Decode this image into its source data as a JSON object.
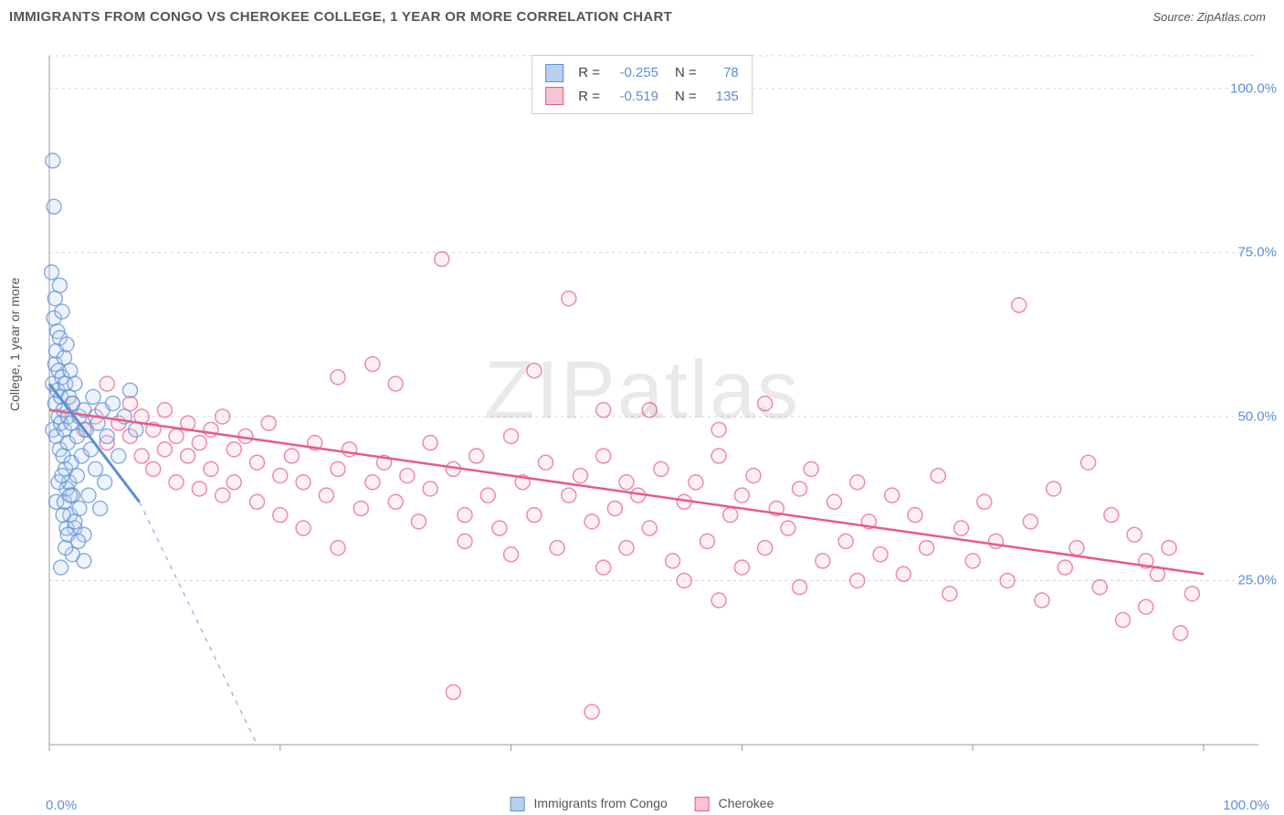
{
  "title": "IMMIGRANTS FROM CONGO VS CHEROKEE COLLEGE, 1 YEAR OR MORE CORRELATION CHART",
  "source_label": "Source: ZipAtlas.com",
  "watermark": "ZIPatlas",
  "chart": {
    "type": "scatter",
    "background_color": "#ffffff",
    "grid_color": "#d5d5d5",
    "axis_color": "#999999",
    "tick_label_color": "#5b8fd6",
    "ylabel": "College, 1 year or more",
    "xlim": [
      0,
      100
    ],
    "ylim": [
      0,
      105
    ],
    "yticks": [
      25.0,
      50.0,
      75.0,
      100.0
    ],
    "ytick_labels": [
      "25.0%",
      "50.0%",
      "75.0%",
      "100.0%"
    ],
    "xtick_left": "0.0%",
    "xtick_right": "100.0%",
    "xminor_ticks": [
      0,
      20,
      40,
      60,
      80,
      100
    ],
    "marker_radius": 8,
    "marker_stroke_width": 1.5,
    "marker_fill_opacity": 0.25,
    "series": [
      {
        "name": "Immigrants from Congo",
        "color": "#5b8fd6",
        "fill": "#b8d0ef",
        "R": "-0.255",
        "N": "78",
        "trend": {
          "x1": 0,
          "y1": 55,
          "x2": 7.8,
          "y2": 37,
          "solid_until_x": 7.8,
          "dash_to_x": 18,
          "dash_to_y": 0
        },
        "points": [
          [
            0.2,
            72
          ],
          [
            0.3,
            55
          ],
          [
            0.3,
            48
          ],
          [
            0.4,
            65
          ],
          [
            0.5,
            58
          ],
          [
            0.5,
            52
          ],
          [
            0.6,
            60
          ],
          [
            0.6,
            47
          ],
          [
            0.7,
            54
          ],
          [
            0.7,
            63
          ],
          [
            0.8,
            50
          ],
          [
            0.8,
            57
          ],
          [
            0.9,
            45
          ],
          [
            0.9,
            62
          ],
          [
            1.0,
            53
          ],
          [
            1.0,
            49
          ],
          [
            1.1,
            66
          ],
          [
            1.1,
            56
          ],
          [
            1.2,
            51
          ],
          [
            1.2,
            44
          ],
          [
            1.3,
            59
          ],
          [
            1.3,
            48
          ],
          [
            1.4,
            55
          ],
          [
            1.4,
            42
          ],
          [
            1.5,
            61
          ],
          [
            1.5,
            39
          ],
          [
            1.6,
            50
          ],
          [
            1.6,
            46
          ],
          [
            1.7,
            53
          ],
          [
            1.7,
            40
          ],
          [
            1.8,
            57
          ],
          [
            1.8,
            35
          ],
          [
            1.9,
            49
          ],
          [
            1.9,
            43
          ],
          [
            2.0,
            52
          ],
          [
            2.0,
            38
          ],
          [
            2.2,
            55
          ],
          [
            2.2,
            33
          ],
          [
            2.4,
            47
          ],
          [
            2.4,
            41
          ],
          [
            2.6,
            50
          ],
          [
            2.6,
            36
          ],
          [
            2.8,
            44
          ],
          [
            3.0,
            51
          ],
          [
            3.0,
            32
          ],
          [
            3.2,
            48
          ],
          [
            3.4,
            38
          ],
          [
            3.6,
            45
          ],
          [
            3.8,
            53
          ],
          [
            4.0,
            42
          ],
          [
            4.2,
            49
          ],
          [
            4.4,
            36
          ],
          [
            4.6,
            51
          ],
          [
            4.8,
            40
          ],
          [
            5.0,
            47
          ],
          [
            5.5,
            52
          ],
          [
            6.0,
            44
          ],
          [
            6.5,
            50
          ],
          [
            7.0,
            54
          ],
          [
            7.5,
            48
          ],
          [
            0.3,
            89
          ],
          [
            0.4,
            82
          ],
          [
            1.0,
            27
          ],
          [
            1.5,
            33
          ],
          [
            2.0,
            29
          ],
          [
            0.6,
            37
          ],
          [
            0.8,
            40
          ],
          [
            1.2,
            35
          ],
          [
            1.4,
            30
          ],
          [
            0.5,
            68
          ],
          [
            0.9,
            70
          ],
          [
            1.1,
            41
          ],
          [
            1.3,
            37
          ],
          [
            1.6,
            32
          ],
          [
            1.8,
            38
          ],
          [
            2.2,
            34
          ],
          [
            2.5,
            31
          ],
          [
            3.0,
            28
          ]
        ]
      },
      {
        "name": "Cherokee",
        "color": "#e85b86",
        "fill": "#f7c3d2",
        "R": "-0.519",
        "N": "135",
        "trend": {
          "x1": 0,
          "y1": 51,
          "x2": 100,
          "y2": 26
        },
        "points": [
          [
            2,
            52
          ],
          [
            3,
            48
          ],
          [
            4,
            50
          ],
          [
            5,
            46
          ],
          [
            5,
            55
          ],
          [
            6,
            49
          ],
          [
            7,
            47
          ],
          [
            7,
            52
          ],
          [
            8,
            44
          ],
          [
            8,
            50
          ],
          [
            9,
            48
          ],
          [
            9,
            42
          ],
          [
            10,
            51
          ],
          [
            10,
            45
          ],
          [
            11,
            47
          ],
          [
            11,
            40
          ],
          [
            12,
            49
          ],
          [
            12,
            44
          ],
          [
            13,
            46
          ],
          [
            13,
            39
          ],
          [
            14,
            48
          ],
          [
            14,
            42
          ],
          [
            15,
            50
          ],
          [
            15,
            38
          ],
          [
            16,
            45
          ],
          [
            16,
            40
          ],
          [
            17,
            47
          ],
          [
            18,
            43
          ],
          [
            18,
            37
          ],
          [
            19,
            49
          ],
          [
            20,
            41
          ],
          [
            20,
            35
          ],
          [
            21,
            44
          ],
          [
            22,
            40
          ],
          [
            22,
            33
          ],
          [
            23,
            46
          ],
          [
            24,
            38
          ],
          [
            25,
            42
          ],
          [
            25,
            30
          ],
          [
            26,
            45
          ],
          [
            27,
            36
          ],
          [
            28,
            40
          ],
          [
            28,
            58
          ],
          [
            29,
            43
          ],
          [
            30,
            37
          ],
          [
            30,
            55
          ],
          [
            31,
            41
          ],
          [
            32,
            34
          ],
          [
            33,
            46
          ],
          [
            33,
            39
          ],
          [
            34,
            74
          ],
          [
            35,
            42
          ],
          [
            36,
            35
          ],
          [
            36,
            31
          ],
          [
            37,
            44
          ],
          [
            38,
            38
          ],
          [
            39,
            33
          ],
          [
            40,
            47
          ],
          [
            40,
            29
          ],
          [
            41,
            40
          ],
          [
            42,
            35
          ],
          [
            42,
            57
          ],
          [
            43,
            43
          ],
          [
            44,
            30
          ],
          [
            45,
            38
          ],
          [
            45,
            68
          ],
          [
            46,
            41
          ],
          [
            47,
            34
          ],
          [
            48,
            44
          ],
          [
            48,
            27
          ],
          [
            49,
            36
          ],
          [
            50,
            40
          ],
          [
            50,
            30
          ],
          [
            51,
            38
          ],
          [
            52,
            33
          ],
          [
            52,
            51
          ],
          [
            53,
            42
          ],
          [
            54,
            28
          ],
          [
            55,
            37
          ],
          [
            55,
            25
          ],
          [
            56,
            40
          ],
          [
            57,
            31
          ],
          [
            58,
            44
          ],
          [
            58,
            22
          ],
          [
            59,
            35
          ],
          [
            60,
            38
          ],
          [
            60,
            27
          ],
          [
            61,
            41
          ],
          [
            62,
            30
          ],
          [
            63,
            36
          ],
          [
            64,
            33
          ],
          [
            65,
            39
          ],
          [
            65,
            24
          ],
          [
            66,
            42
          ],
          [
            67,
            28
          ],
          [
            68,
            37
          ],
          [
            69,
            31
          ],
          [
            70,
            40
          ],
          [
            70,
            25
          ],
          [
            71,
            34
          ],
          [
            72,
            29
          ],
          [
            73,
            38
          ],
          [
            74,
            26
          ],
          [
            75,
            35
          ],
          [
            76,
            30
          ],
          [
            77,
            41
          ],
          [
            78,
            23
          ],
          [
            79,
            33
          ],
          [
            80,
            28
          ],
          [
            81,
            37
          ],
          [
            82,
            31
          ],
          [
            83,
            25
          ],
          [
            84,
            67
          ],
          [
            85,
            34
          ],
          [
            86,
            22
          ],
          [
            87,
            39
          ],
          [
            88,
            27
          ],
          [
            89,
            30
          ],
          [
            90,
            43
          ],
          [
            91,
            24
          ],
          [
            92,
            35
          ],
          [
            93,
            19
          ],
          [
            94,
            32
          ],
          [
            95,
            28
          ],
          [
            95,
            21
          ],
          [
            96,
            26
          ],
          [
            97,
            30
          ],
          [
            98,
            17
          ],
          [
            99,
            23
          ],
          [
            47,
            5
          ],
          [
            35,
            8
          ],
          [
            58,
            48
          ],
          [
            62,
            52
          ],
          [
            48,
            51
          ],
          [
            25,
            56
          ]
        ]
      }
    ]
  },
  "footer_legend": {
    "items": [
      {
        "label": "Immigrants from Congo",
        "fill": "#b8d0ef",
        "stroke": "#5b8fd6"
      },
      {
        "label": "Cherokee",
        "fill": "#f7c3d2",
        "stroke": "#e85b86"
      }
    ]
  }
}
